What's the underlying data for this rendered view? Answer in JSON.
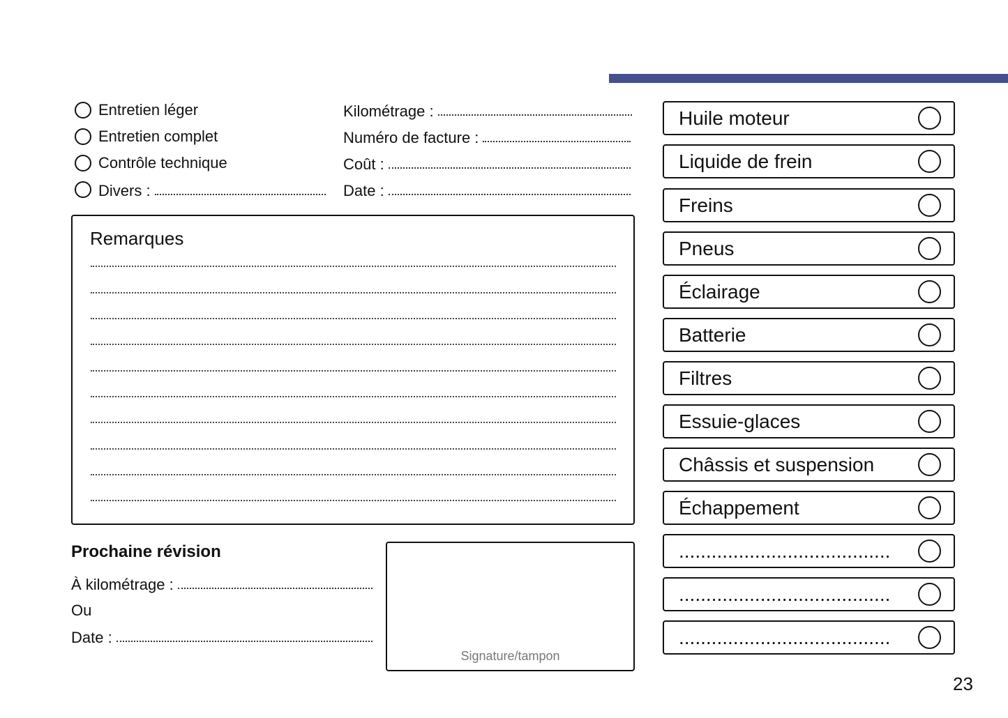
{
  "accent_color": "#464f8e",
  "service_types": [
    {
      "label": "Entretien léger"
    },
    {
      "label": "Entretien complet"
    },
    {
      "label": "Contrôle technique"
    },
    {
      "label": "Divers :"
    }
  ],
  "fields": [
    {
      "label": "Kilométrage :"
    },
    {
      "label": "Numéro de facture :"
    },
    {
      "label": "Coût :"
    },
    {
      "label": "Date :"
    }
  ],
  "remarks": {
    "title": "Remarques"
  },
  "next_service": {
    "title": "Prochaine révision",
    "mileage_label": "À kilométrage :",
    "or_label": "Ou",
    "date_label": "Date :"
  },
  "signature": {
    "label": "Signature/tampon"
  },
  "checklist": [
    {
      "label": "Huile moteur"
    },
    {
      "label": "Liquide de frein"
    },
    {
      "label": "Freins"
    },
    {
      "label": "Pneus"
    },
    {
      "label": "Éclairage"
    },
    {
      "label": "Batterie"
    },
    {
      "label": "Filtres"
    },
    {
      "label": "Essuie-glaces"
    },
    {
      "label": "Châssis et suspension"
    },
    {
      "label": "Échappement"
    },
    {
      "label": "......................................."
    },
    {
      "label": "......................................."
    },
    {
      "label": "......................................."
    }
  ],
  "page_number": "23"
}
